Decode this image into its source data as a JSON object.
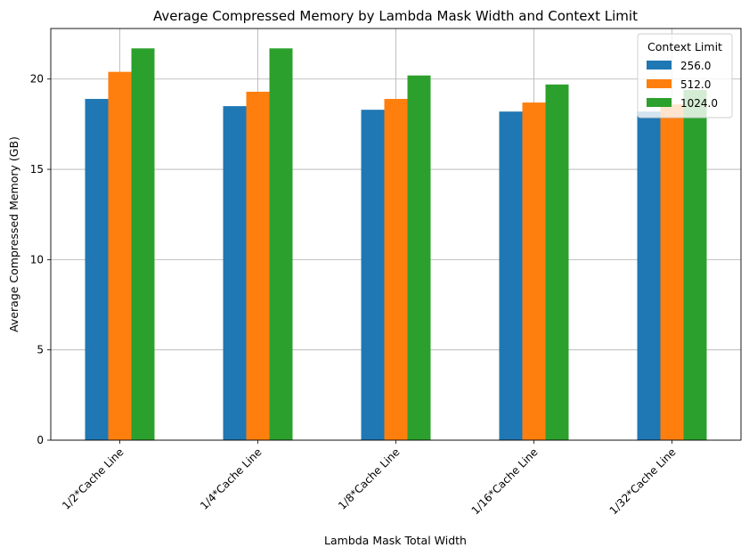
{
  "chart_data": {
    "type": "bar",
    "title": "Average Compressed Memory by Lambda Mask Width and Context Limit",
    "xlabel": "Lambda Mask Total Width",
    "ylabel": "Average Compressed Memory (GB)",
    "categories": [
      "1/2*Cache Line",
      "1/4*Cache Line",
      "1/8*Cache Line",
      "1/16*Cache Line",
      "1/32*Cache Line"
    ],
    "series": [
      {
        "name": "256.0",
        "color": "#1f77b4",
        "values": [
          18.9,
          18.5,
          18.3,
          18.2,
          18.2
        ]
      },
      {
        "name": "512.0",
        "color": "#ff7f0e",
        "values": [
          20.4,
          19.3,
          18.9,
          18.7,
          18.6
        ]
      },
      {
        "name": "1024.0",
        "color": "#2ca02c",
        "values": [
          21.7,
          21.7,
          20.2,
          19.7,
          19.4
        ]
      }
    ],
    "ylim": [
      0,
      22.8
    ],
    "yticks": [
      0,
      5,
      10,
      15,
      20
    ],
    "grid": true,
    "legend": {
      "title": "Context Limit",
      "placement": "top-right"
    }
  }
}
